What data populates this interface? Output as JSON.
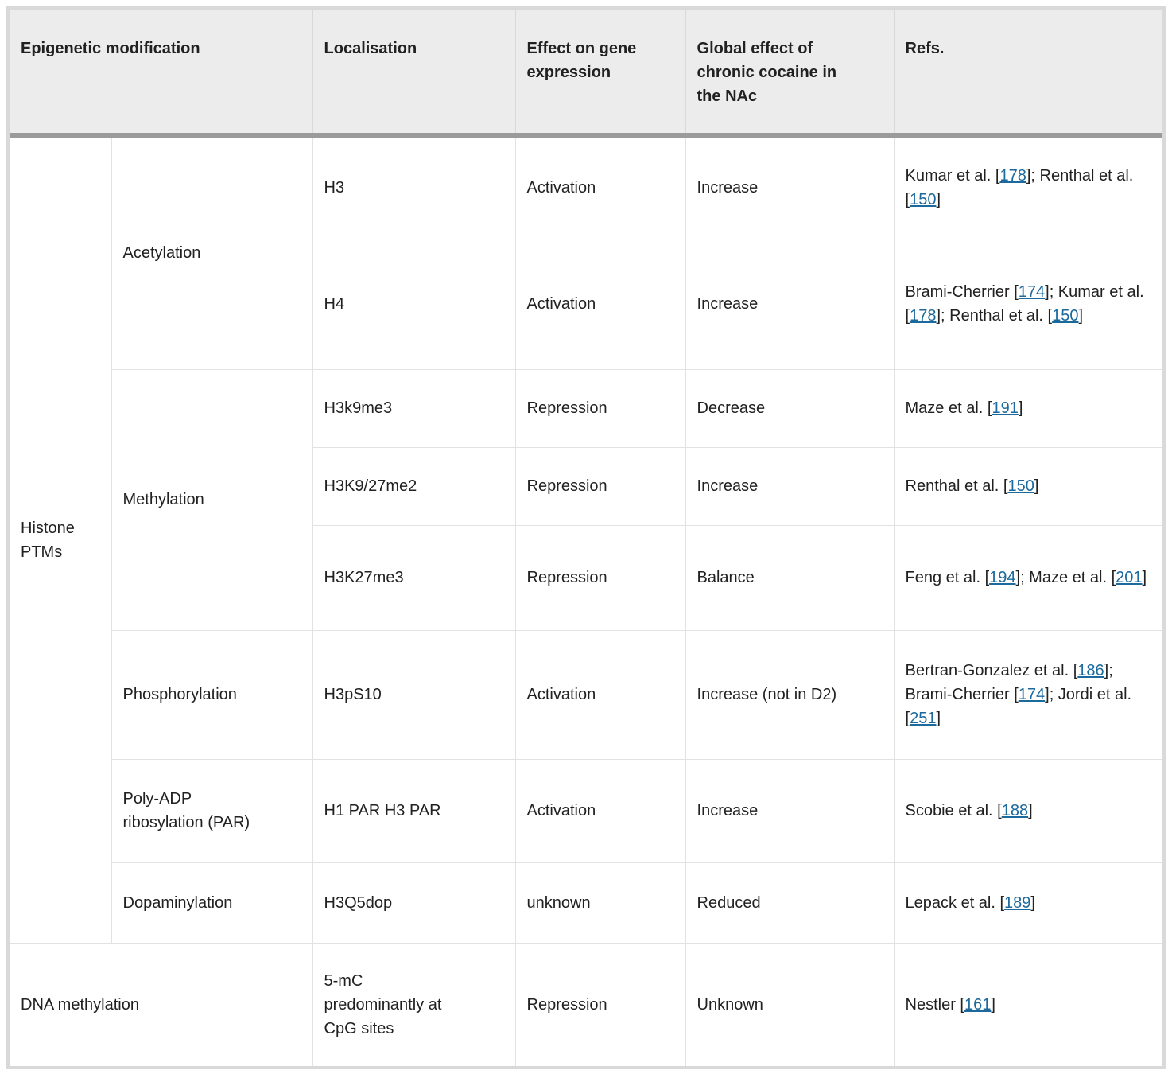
{
  "colors": {
    "link": "#1b699d",
    "header_bg": "#ececec",
    "header_rule": "#9b9b9b",
    "cell_border": "#e2e2e2",
    "outer_border": "#d9d9d9",
    "text": "#212121"
  },
  "header": {
    "col_modification": "Epigenetic modification",
    "col_localisation": "Localisation",
    "col_effect": "Effect on gene\nexpression",
    "col_global": "Global effect of\nchronic cocaine in\nthe NAc",
    "col_refs": "Refs."
  },
  "groups": {
    "histone_label": "Histone\nPTMs",
    "dna_label": "DNA methylation"
  },
  "rows": [
    {
      "modification": "Acetylation",
      "localisation": "H3",
      "effect": "Activation",
      "global_effect": "Increase",
      "refs": [
        {
          "t": "Kumar et al. ["
        },
        {
          "l": "178"
        },
        {
          "t": "]; Renthal et al. ["
        },
        {
          "l": "150"
        },
        {
          "t": "]"
        }
      ]
    },
    {
      "localisation": "H4",
      "effect": "Activation",
      "global_effect": "Increase",
      "refs": [
        {
          "t": "Brami-Cherrier ["
        },
        {
          "l": "174"
        },
        {
          "t": "]; Kumar et al. ["
        },
        {
          "l": "178"
        },
        {
          "t": "]; Renthal et al. ["
        },
        {
          "l": "150"
        },
        {
          "t": "]"
        }
      ]
    },
    {
      "modification": "Methylation",
      "localisation": "H3k9me3",
      "effect": "Repression",
      "global_effect": "Decrease",
      "refs": [
        {
          "t": "Maze et al. ["
        },
        {
          "l": "191"
        },
        {
          "t": "]"
        }
      ]
    },
    {
      "localisation": "H3K9/27me2",
      "effect": "Repression",
      "global_effect": "Increase",
      "refs": [
        {
          "t": "Renthal et al. ["
        },
        {
          "l": "150"
        },
        {
          "t": "]"
        }
      ]
    },
    {
      "localisation": "H3K27me3",
      "effect": "Repression",
      "global_effect": "Balance",
      "refs": [
        {
          "t": "Feng et al. ["
        },
        {
          "l": "194"
        },
        {
          "t": "]; Maze et al. ["
        },
        {
          "l": "201"
        },
        {
          "t": "]"
        }
      ]
    },
    {
      "modification": "Phosphorylation",
      "localisation": "H3pS10",
      "effect": "Activation",
      "global_effect": "Increase (not in D2)",
      "refs": [
        {
          "t": "Bertran-Gonzalez et al. ["
        },
        {
          "l": "186"
        },
        {
          "t": "]; Brami-Cherrier ["
        },
        {
          "l": "174"
        },
        {
          "t": "]; Jordi et al. ["
        },
        {
          "l": "251"
        },
        {
          "t": "]"
        }
      ]
    },
    {
      "modification": "Poly-ADP\nribosylation (PAR)",
      "localisation": "H1 PAR H3 PAR",
      "effect": "Activation",
      "global_effect": "Increase",
      "refs": [
        {
          "t": "Scobie et al. ["
        },
        {
          "l": "188"
        },
        {
          "t": "]"
        }
      ]
    },
    {
      "modification": "Dopaminylation",
      "localisation": "H3Q5dop",
      "effect": "unknown",
      "global_effect": "Reduced",
      "refs": [
        {
          "t": "Lepack et al. ["
        },
        {
          "l": "189"
        },
        {
          "t": "]"
        }
      ]
    },
    {
      "localisation": "5-mC\npredominantly at\nCpG sites",
      "effect": "Repression",
      "global_effect": "Unknown",
      "refs": [
        {
          "t": "Nestler ["
        },
        {
          "l": "161"
        },
        {
          "t": "]"
        }
      ]
    }
  ]
}
